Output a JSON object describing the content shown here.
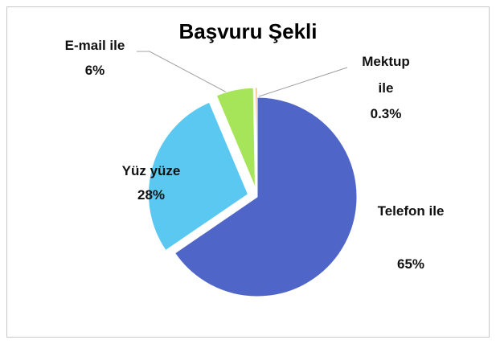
{
  "chart_data": {
    "type": "pie",
    "title": "Başvuru Şekli",
    "categories": [
      "Telefon ile",
      "Yüz yüze",
      "E-mail ile",
      "Mektup ile"
    ],
    "values": [
      65,
      28,
      6,
      0.3
    ],
    "value_labels": [
      "65%",
      "28%",
      "6%",
      "0.3%"
    ],
    "colors": [
      "#4f66c8",
      "#5bc8f2",
      "#a6e45a",
      "#f0b070"
    ]
  }
}
